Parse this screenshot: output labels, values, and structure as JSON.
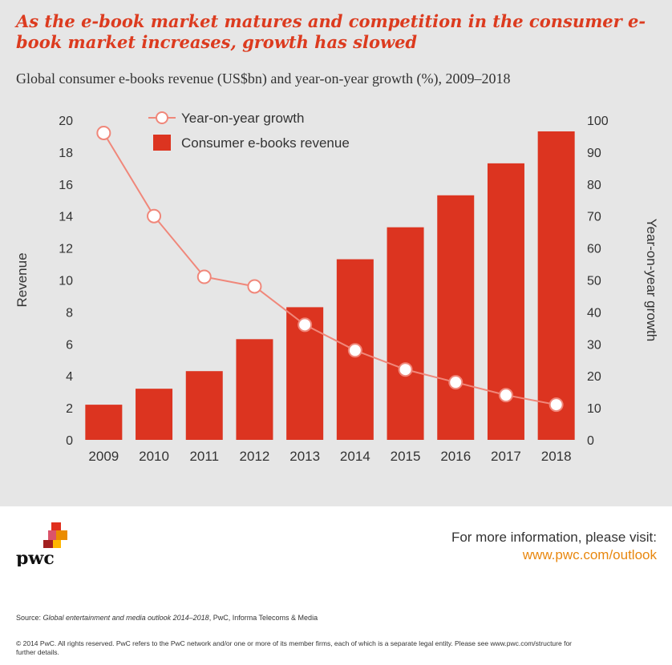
{
  "headline": "As the e-book market matures and competition in the consumer e-book market increases, growth has slowed",
  "subtitle": "Global consumer e-books revenue (US$bn) and year-on-year growth (%), 2009–2018",
  "chart_data": {
    "type": "bar",
    "categories": [
      "2009",
      "2010",
      "2011",
      "2012",
      "2013",
      "2014",
      "2015",
      "2016",
      "2017",
      "2018"
    ],
    "series": [
      {
        "name": "Consumer e-books revenue",
        "type": "bar",
        "axis": "left",
        "values": [
          2.2,
          3.2,
          4.3,
          6.3,
          8.3,
          11.3,
          13.3,
          15.3,
          17.3,
          19.3
        ]
      },
      {
        "name": "Year-on-year growth",
        "type": "line",
        "axis": "right",
        "values": [
          96,
          70,
          51,
          48,
          36,
          28,
          22,
          18,
          14,
          11
        ]
      }
    ],
    "ylabel": "Revenue",
    "y2label": "Year-on-year growth",
    "ylim": [
      0,
      20
    ],
    "y2lim": [
      0,
      100
    ],
    "yticks": [
      0,
      2,
      4,
      6,
      8,
      10,
      12,
      14,
      16,
      18,
      20
    ],
    "y2ticks": [
      0,
      10,
      20,
      30,
      40,
      50,
      60,
      70,
      80,
      90,
      100
    ],
    "legend": [
      "Year-on-year growth",
      "Consumer e-books revenue"
    ],
    "legend_position": "top-left",
    "grid": false,
    "colors": {
      "bar": "#dc3420",
      "line": "#f0877a",
      "marker_fill": "#ffffff"
    }
  },
  "footer": {
    "logo_text": "pwc",
    "more_info_label": "For more information, please visit:",
    "more_info_link": "www.pwc.com/outlook",
    "source_prefix": "Source: ",
    "source_title": "Global entertainment and media outlook 2014–2018",
    "source_suffix": ", PwC, Informa Telecoms & Media",
    "copyright": "© 2014 PwC. All rights reserved. PwC refers to the PwC network and/or one or more of its member firms, each of which is a separate legal entity. Please see www.pwc.com/structure for further details."
  }
}
